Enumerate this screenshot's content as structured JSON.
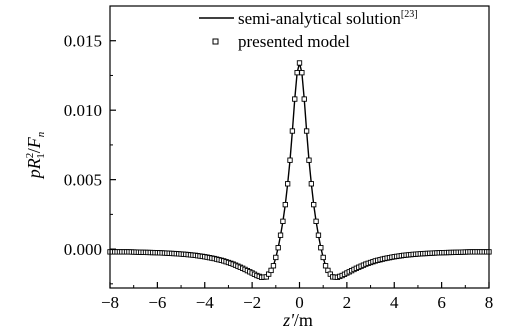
{
  "chart_data": {
    "type": "line",
    "xlabel": {
      "var": "z'",
      "unit": "/m"
    },
    "ylabel": {
      "p": "p",
      "R": "R",
      "sub1": "1",
      "sup2": "2",
      "slash": "/",
      "F": "F",
      "subn": "n"
    },
    "xlim": [
      -8,
      8
    ],
    "ylim": [
      -0.0028,
      0.0175
    ],
    "x_ticks": [
      -8,
      -6,
      -4,
      -2,
      0,
      2,
      4,
      6,
      8
    ],
    "x_tick_labels": [
      "−8",
      "−6",
      "−4",
      "−2",
      "0",
      "2",
      "4",
      "6",
      "8"
    ],
    "y_ticks": [
      0.0,
      0.005,
      0.01,
      0.015
    ],
    "y_tick_labels": [
      "0.000",
      "0.005",
      "0.010",
      "0.015"
    ],
    "legend_position": "top-right",
    "series": [
      {
        "name": "semi-analytical solution",
        "citation": "[23]",
        "style": "solid-line",
        "x": [
          -8,
          -7.6,
          -7.2,
          -6.8,
          -6.4,
          -6,
          -5.6,
          -5.2,
          -4.8,
          -4.4,
          -4,
          -3.6,
          -3.2,
          -2.8,
          -2.4,
          -2.0,
          -1.8,
          -1.6,
          -1.4,
          -1.25,
          -1.1,
          -1.0,
          -0.9,
          -0.8,
          -0.7,
          -0.6,
          -0.5,
          -0.4,
          -0.3,
          -0.2,
          -0.1,
          0,
          0.1,
          0.2,
          0.3,
          0.4,
          0.5,
          0.6,
          0.7,
          0.8,
          0.9,
          1.0,
          1.1,
          1.25,
          1.4,
          1.6,
          1.8,
          2.0,
          2.4,
          2.8,
          3.2,
          3.6,
          4,
          4.4,
          4.8,
          5.2,
          5.6,
          6,
          6.4,
          6.8,
          7.2,
          7.6,
          8
        ],
        "values": [
          -0.0002,
          -0.0002,
          -0.0002,
          -0.00022,
          -0.00024,
          -0.00026,
          -0.00029,
          -0.00033,
          -0.00038,
          -0.00045,
          -0.00055,
          -0.00068,
          -0.00085,
          -0.00108,
          -0.00138,
          -0.00172,
          -0.0019,
          -0.00203,
          -0.002,
          -0.0017,
          -0.0012,
          -0.0006,
          0.0001,
          0.001,
          0.002,
          0.0032,
          0.0047,
          0.0064,
          0.0085,
          0.0108,
          0.0127,
          0.0134,
          0.0127,
          0.0108,
          0.0085,
          0.0064,
          0.0047,
          0.0032,
          0.002,
          0.001,
          0.0001,
          -0.0006,
          -0.0012,
          -0.0017,
          -0.002,
          -0.00203,
          -0.0019,
          -0.00172,
          -0.00138,
          -0.00108,
          -0.00085,
          -0.00068,
          -0.00055,
          -0.00045,
          -0.00038,
          -0.00033,
          -0.00029,
          -0.00026,
          -0.00024,
          -0.00022,
          -0.0002,
          -0.0002,
          -0.0002
        ]
      },
      {
        "name": "presented model",
        "style": "open-square-markers",
        "x_start": -8,
        "x_end": 8,
        "spacing": 0.1
      }
    ]
  }
}
